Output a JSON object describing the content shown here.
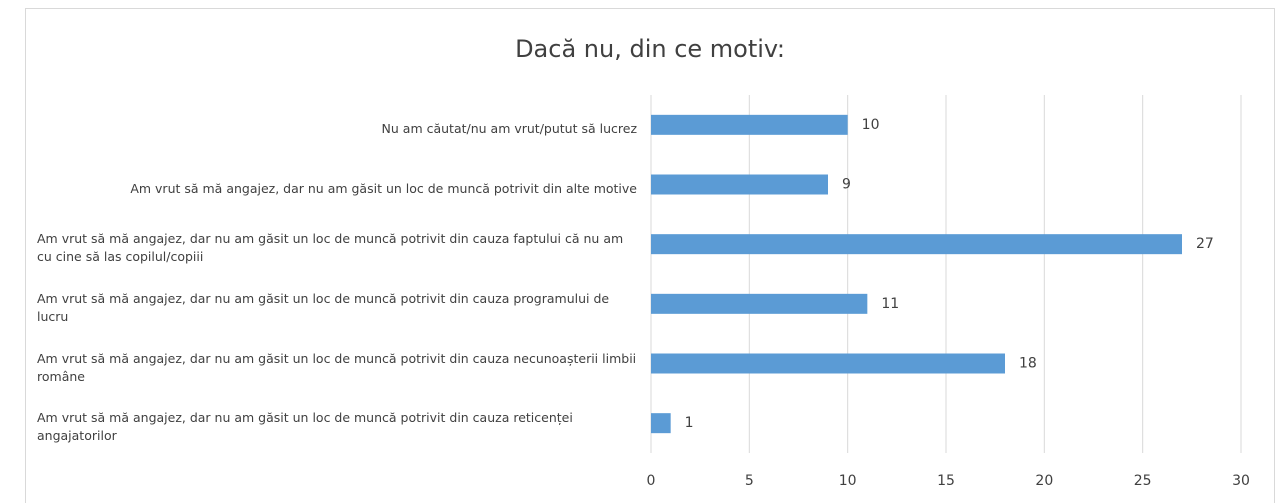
{
  "chart_data": {
    "type": "bar",
    "orientation": "horizontal",
    "title": "Dacă nu, din ce motiv:",
    "categories": [
      "Nu am căutat/nu am vrut/putut să lucrez",
      "Am vrut să mă angajez, dar nu am găsit un loc de muncă potrivit din alte motive",
      "Am vrut să mă angajez, dar nu am găsit un loc de muncă potrivit din cauza faptului că nu am cu cine să las copilul/copiii",
      "Am vrut să mă angajez, dar nu am găsit un loc de muncă potrivit din cauza programului de lucru",
      "Am vrut să mă angajez, dar nu am găsit un loc de muncă potrivit din cauza necunoașterii limbii române",
      "Am vrut să mă angajez, dar nu am găsit un loc de muncă potrivit din cauza reticenței angajatorilor"
    ],
    "values": [
      10,
      9,
      27,
      11,
      18,
      1
    ],
    "color": "#5b9bd5",
    "xlim": [
      0,
      30
    ],
    "xticks": [
      0,
      5,
      10,
      15,
      20,
      25,
      30
    ],
    "grid": true
  }
}
